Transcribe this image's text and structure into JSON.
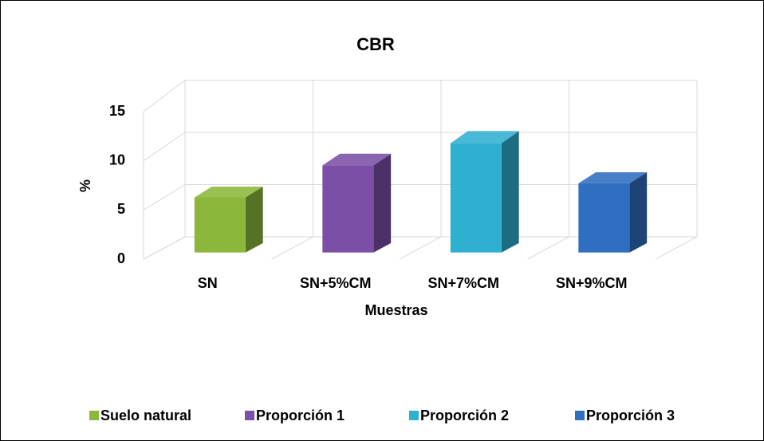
{
  "chart_data": {
    "type": "bar3d",
    "title": "CBR",
    "xlabel": "Muestras",
    "ylabel": "%",
    "categories": [
      "SN",
      "SN+5%CM",
      "SN+7%CM",
      "SN+9%CM"
    ],
    "series": [
      {
        "name": "Suelo natural",
        "color": "#8bb83a",
        "values": [
          5.5,
          null,
          null,
          null
        ]
      },
      {
        "name": "Proporción 1",
        "color": "#7b4fa6",
        "values": [
          null,
          8.7,
          null,
          null
        ]
      },
      {
        "name": "Proporción 2",
        "color": "#2fb0d0",
        "values": [
          null,
          null,
          10.9,
          null
        ]
      },
      {
        "name": "Proporción 3",
        "color": "#2f6ec0",
        "values": [
          null,
          null,
          null,
          6.9
        ]
      }
    ],
    "ylim": [
      0,
      15
    ],
    "yticks": [
      0,
      5,
      10,
      15
    ],
    "grid": true,
    "legend": "bottom"
  }
}
